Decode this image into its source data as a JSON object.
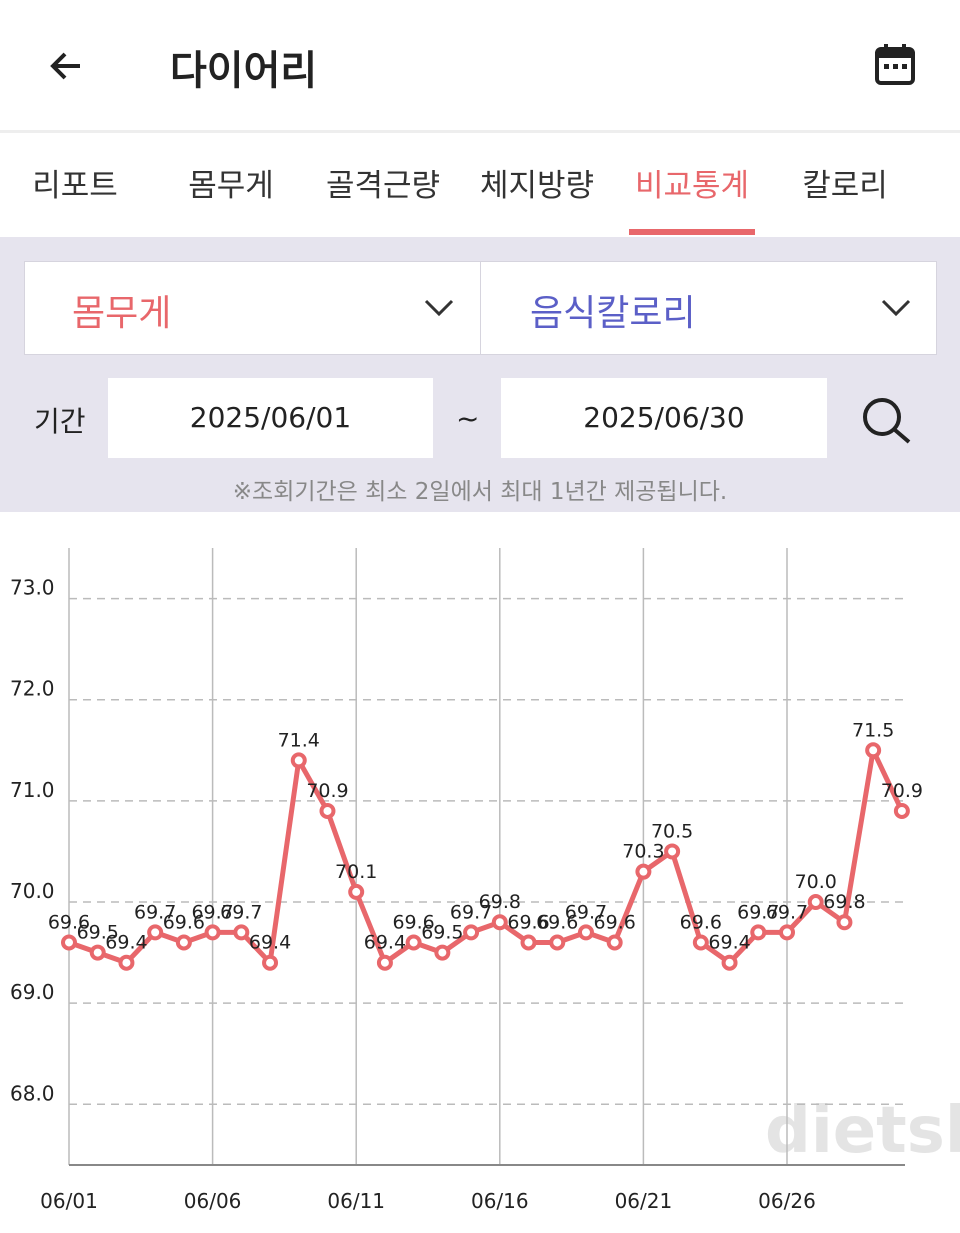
{
  "header": {
    "title": "다이어리"
  },
  "tabs": {
    "items": [
      "리포트",
      "몸무게",
      "골격근량",
      "체지방량",
      "비교통계",
      "칼로리"
    ],
    "active": 4
  },
  "selectors": {
    "left": "몸무게",
    "right": "음식칼로리"
  },
  "period": {
    "label": "기간",
    "start": "2025/06/01",
    "separator": "~",
    "end": "2025/06/30",
    "note": "※조회기간은 최소 2일에서 최대 1년간 제공됩니다."
  },
  "watermark": "dietshin.com",
  "chart_data": {
    "type": "line",
    "categories": [
      "06/01",
      null,
      null,
      null,
      null,
      "06/06",
      null,
      null,
      null,
      null,
      "06/11",
      null,
      null,
      null,
      null,
      "06/16",
      null,
      null,
      null,
      null,
      "06/21",
      null,
      null,
      null,
      null,
      "06/26",
      null,
      null,
      null,
      null
    ],
    "values": [
      69.6,
      69.5,
      69.4,
      69.7,
      69.6,
      69.7,
      69.7,
      69.4,
      71.4,
      70.9,
      70.1,
      69.4,
      69.6,
      69.5,
      69.7,
      69.8,
      69.6,
      69.6,
      69.7,
      69.6,
      70.3,
      70.5,
      69.6,
      69.4,
      69.7,
      69.7,
      70.0,
      69.8,
      71.5,
      70.9
    ],
    "value_labels": [
      "69.6",
      "69.5",
      "69.4",
      "69.7",
      "69.6",
      "69.7",
      "69.7",
      "69.4",
      "71.4",
      "70.9",
      "70.1",
      "69.4",
      "69.6",
      "69.5",
      "69.7",
      "69.8",
      "69.6",
      "69.6",
      "69.7",
      "69.6",
      "70.3",
      "70.5",
      "69.6",
      "69.4",
      "69.7",
      "69.7",
      "70.0",
      "69.8",
      "71.5",
      "70.9"
    ],
    "color": "#e8676b",
    "ylim": [
      67.4,
      73.5
    ],
    "yticks": [
      {
        "value": 68,
        "label": "68.0"
      },
      {
        "value": 69,
        "label": "69.0"
      },
      {
        "value": 70,
        "label": "70.0"
      },
      {
        "value": 71,
        "label": "71.0"
      },
      {
        "value": 72,
        "label": "72.0"
      },
      {
        "value": 73,
        "label": "73.0"
      }
    ],
    "grid": true
  }
}
